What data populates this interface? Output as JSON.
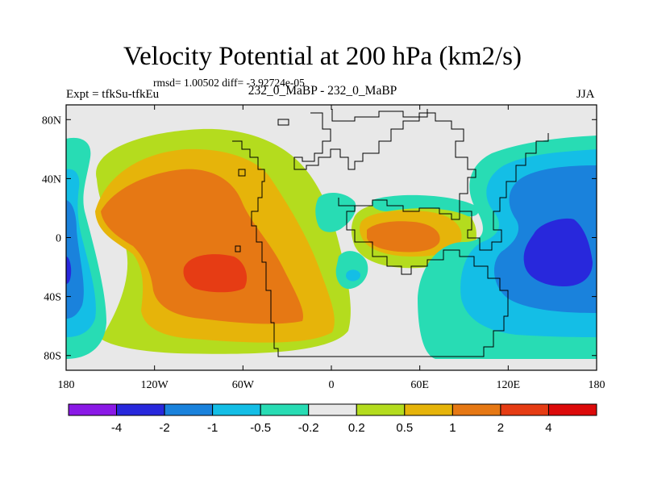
{
  "header": {
    "title": "Velocity Potential at 200 hPa (km2/s)",
    "stats": "rmsd= 1.00502 diff= -3.92724e-05",
    "experiment": "Expt = tfkSu-tfkEu",
    "case": "232_0_MaBP - 232_0_MaBP",
    "season": "JJA"
  },
  "chart_data": {
    "type": "heatmap",
    "title": "Velocity Potential at 200 hPa (km2/s)",
    "units": "km2/s",
    "x_range": [
      -180,
      180
    ],
    "y_range": [
      -90,
      90
    ],
    "xticks": [
      {
        "value": -180,
        "label": "180"
      },
      {
        "value": -120,
        "label": "120W"
      },
      {
        "value": -60,
        "label": "60W"
      },
      {
        "value": 0,
        "label": "0"
      },
      {
        "value": 60,
        "label": "60E"
      },
      {
        "value": 120,
        "label": "120E"
      },
      {
        "value": 180,
        "label": "180"
      }
    ],
    "yticks": [
      {
        "value": 80,
        "label": "80N"
      },
      {
        "value": 40,
        "label": "40N"
      },
      {
        "value": 0,
        "label": "0"
      },
      {
        "value": -40,
        "label": "40S"
      },
      {
        "value": -80,
        "label": "80S"
      }
    ],
    "colorbar": {
      "levels": [
        "-4",
        "-2",
        "-1",
        "-0.5",
        "-0.2",
        "0.2",
        "0.5",
        "1",
        "2",
        "4"
      ],
      "colors": [
        "#8a19e6",
        "#2828dc",
        "#1a82dc",
        "#14bee6",
        "#28dcb4",
        "#e8e8e8",
        "#b4dc1e",
        "#e6b40a",
        "#e67814",
        "#e63c14",
        "#dc0a0a"
      ]
    },
    "features": [
      {
        "name": "western-hemisphere-positive",
        "center": [
          -80,
          -20
        ],
        "peak": 2.5
      },
      {
        "name": "africa-positive",
        "center": [
          45,
          0
        ],
        "peak": 1.5
      },
      {
        "name": "west-pacific-negative",
        "center": [
          155,
          -10
        ],
        "peak": -3
      },
      {
        "name": "date-line-negative",
        "center": [
          -180,
          -10
        ],
        "peak": -1.5
      }
    ]
  },
  "colors": {
    "frame": "#000000",
    "coastline": "#000000",
    "neutral": "#e8e8e8"
  }
}
